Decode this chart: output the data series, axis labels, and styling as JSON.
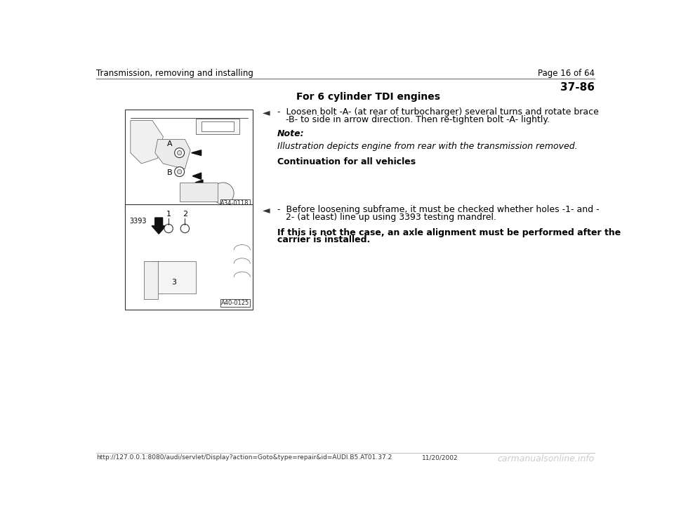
{
  "bg_color": "#ffffff",
  "header_left": "Transmission, removing and installing",
  "header_right": "Page 16 of 64",
  "section_number": "37-86",
  "heading1": "For 6 cylinder TDI engines",
  "arrow_symbol": "◄",
  "bullet1_text": "-  Loosen bolt -A- (at rear of turbocharger) several turns and rotate brace\n   -B- to side in arrow direction. Then re-tighten bolt -A- lightly.",
  "note_label": "Note:",
  "note_italic": "Illustration depicts engine from rear with the transmission removed.",
  "continuation": "Continuation for all vehicles",
  "bullet2_text": "-  Before loosening subframe, it must be checked whether holes -1- and -\n   2- (at least) line up using 3393 testing mandrel.",
  "warning_line1": "If this is not the case, an axle alignment must be performed after the",
  "warning_line2": "carrier is installed.",
  "img1_label": "A34-0118",
  "img2_label": "A40-0125",
  "footer_url": "http://127.0.0.1:8080/audi/servlet/Display?action=Goto&type=repair&id=AUDI.B5.AT01.37.2",
  "footer_date": "11/20/2002",
  "footer_watermark": "carmanualsonline.info",
  "line_color": "#aaaaaa",
  "text_color": "#000000",
  "header_font_size": 8.5,
  "body_font_size": 9,
  "section_font_size": 11,
  "footer_font_size": 6.5
}
